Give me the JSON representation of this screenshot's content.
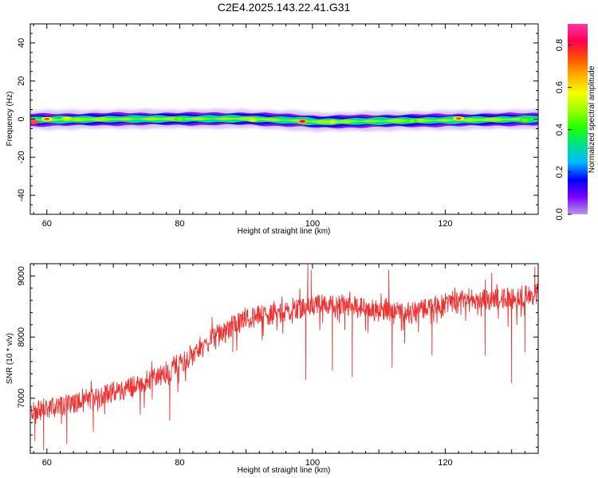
{
  "chart_data": [
    {
      "type": "heatmap",
      "title": "C2E4.2025.143.22.41.G31",
      "xlabel": "Height of straight line (km)",
      "ylabel": "Frequency (Hz)",
      "xlim": [
        57.5,
        134
      ],
      "ylim": [
        -50,
        50
      ],
      "x_ticks": [
        60,
        80,
        100,
        120
      ],
      "y_ticks": [
        40,
        20,
        0,
        -20,
        -40
      ],
      "colorbar": {
        "label": "Normalized spectral amplitude",
        "range": [
          0.0,
          0.9
        ],
        "ticks": [
          0.0,
          0.2,
          0.4,
          0.6,
          0.8
        ],
        "colormap": [
          "#b99ae6",
          "#7b00ff",
          "#0000ff",
          "#00bbff",
          "#00e08c",
          "#22ff00",
          "#9bff00",
          "#f5ff00",
          "#ffb000",
          "#ff5000",
          "#ff004c",
          "#ff33aa"
        ]
      },
      "band": {
        "center_hz": [
          {
            "x": 57.5,
            "y": -0.5
          },
          {
            "x": 70,
            "y": 0
          },
          {
            "x": 90,
            "y": 0.2
          },
          {
            "x": 98,
            "y": -0.8
          },
          {
            "x": 101,
            "y": -1.5
          },
          {
            "x": 110,
            "y": -1
          },
          {
            "x": 134,
            "y": 0
          }
        ],
        "hotspots": [
          {
            "x": 58,
            "y": -1.5,
            "amp": 0.9
          },
          {
            "x": 60,
            "y": 0,
            "amp": 0.7
          },
          {
            "x": 63,
            "y": 0.2,
            "amp": 0.55
          },
          {
            "x": 80,
            "y": 0,
            "amp": 0.5
          },
          {
            "x": 91,
            "y": -0.3,
            "amp": 0.55
          },
          {
            "x": 98.5,
            "y": -1.2,
            "amp": 0.8
          },
          {
            "x": 103,
            "y": -1.5,
            "amp": 0.55
          },
          {
            "x": 115,
            "y": -1,
            "amp": 0.5
          },
          {
            "x": 122,
            "y": 0.3,
            "amp": 0.7
          },
          {
            "x": 132,
            "y": -0.5,
            "amp": 0.5
          }
        ]
      }
    },
    {
      "type": "line",
      "xlabel": "Height of straight line (km)",
      "ylabel": "SNR (10 * v/v)",
      "xlim": [
        57.5,
        134
      ],
      "ylim": [
        6100,
        9200
      ],
      "x_ticks": [
        60,
        80,
        100,
        120
      ],
      "y_ticks": [
        7000,
        8000,
        9000
      ],
      "color": "#ee3030",
      "trend": [
        {
          "x": 57.5,
          "y": 6780
        },
        {
          "x": 62,
          "y": 6880
        },
        {
          "x": 66,
          "y": 6980
        },
        {
          "x": 70,
          "y": 7080
        },
        {
          "x": 74,
          "y": 7230
        },
        {
          "x": 78,
          "y": 7420
        },
        {
          "x": 82,
          "y": 7720
        },
        {
          "x": 86,
          "y": 8050
        },
        {
          "x": 90,
          "y": 8300
        },
        {
          "x": 95,
          "y": 8420
        },
        {
          "x": 100,
          "y": 8520
        },
        {
          "x": 105,
          "y": 8520
        },
        {
          "x": 110,
          "y": 8450
        },
        {
          "x": 115,
          "y": 8420
        },
        {
          "x": 120,
          "y": 8560
        },
        {
          "x": 125,
          "y": 8620
        },
        {
          "x": 130,
          "y": 8640
        },
        {
          "x": 134,
          "y": 8700
        }
      ],
      "noise_amplitude": 160,
      "dips": [
        {
          "x": 58.2,
          "y": 6300
        },
        {
          "x": 59.5,
          "y": 6150
        },
        {
          "x": 63,
          "y": 6250
        },
        {
          "x": 67,
          "y": 6450
        },
        {
          "x": 78.5,
          "y": 6630
        },
        {
          "x": 88,
          "y": 7750
        },
        {
          "x": 99,
          "y": 7300
        },
        {
          "x": 103,
          "y": 7450
        },
        {
          "x": 106,
          "y": 7350
        },
        {
          "x": 112,
          "y": 7500
        },
        {
          "x": 118,
          "y": 7700
        },
        {
          "x": 126,
          "y": 7700
        },
        {
          "x": 130,
          "y": 7250
        },
        {
          "x": 132,
          "y": 7750
        }
      ],
      "peaks": [
        {
          "x": 99.3,
          "y": 9200
        },
        {
          "x": 99.8,
          "y": 9100
        },
        {
          "x": 111.5,
          "y": 9100
        },
        {
          "x": 127,
          "y": 9050
        },
        {
          "x": 133.5,
          "y": 9150
        }
      ]
    }
  ]
}
